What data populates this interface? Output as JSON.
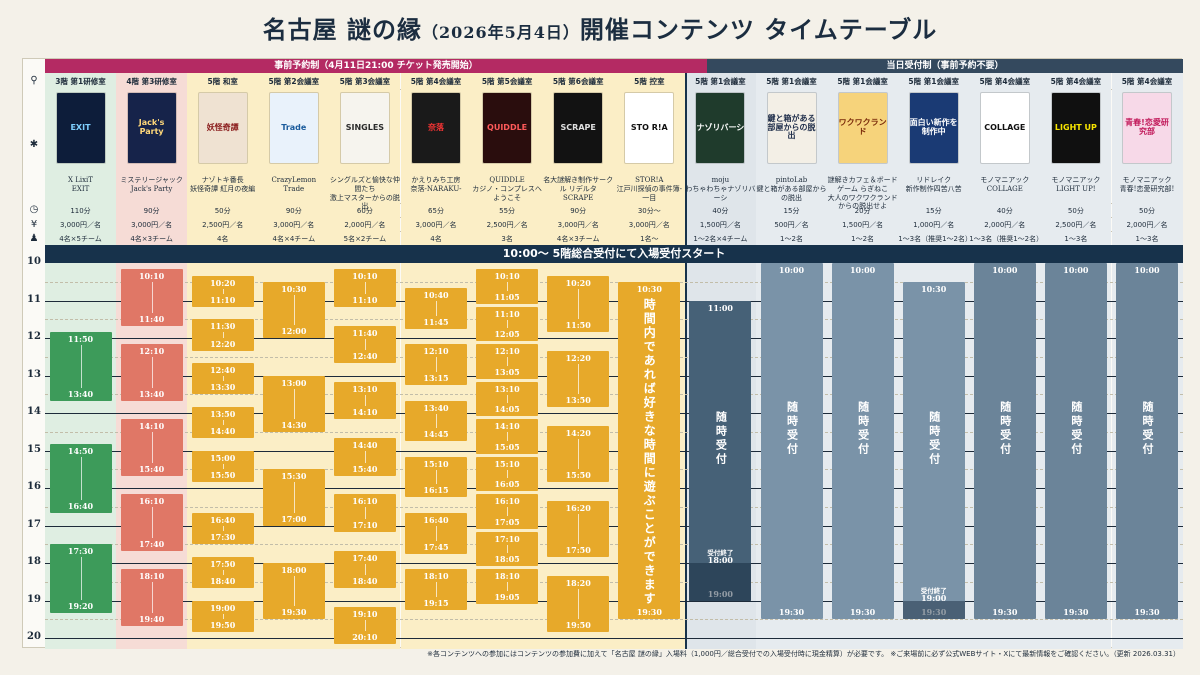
{
  "title": {
    "main": "名古屋 謎の縁",
    "date": "（2026年5月4日）",
    "suffix": "開催コンテンツ タイムテーブル"
  },
  "sections": {
    "pre": "事前予約制（4月11日21:00 チケット発売開始）",
    "day": "当日受付制（事前予約不要）"
  },
  "banner": "10:00～ 5階総合受付にて入場受付スタート",
  "icons": [
    "location-pin-icon",
    "puzzle-icon",
    "clock-icon",
    "yen-icon",
    "people-icon"
  ],
  "hours": [
    "10",
    "11",
    "12",
    "13",
    "14",
    "15",
    "16",
    "17",
    "18",
    "19",
    "20"
  ],
  "columns": [
    {
      "room": "3階 第1研修室",
      "poster": "EXIT",
      "title1": "X LixiT",
      "title2": "EXIT",
      "time": "110分",
      "price": "3,000円／名",
      "people": "4名×5チーム",
      "color": "#3d9b5a",
      "bg": "#dfeee2",
      "slots": [
        [
          "11:50",
          "13:40"
        ],
        [
          "14:50",
          "16:40"
        ],
        [
          "17:30",
          "19:20"
        ]
      ]
    },
    {
      "room": "4階 第3研修室",
      "poster": "Jack's Party",
      "title1": "ミステリージャック",
      "title2": "Jack's Party",
      "time": "90分",
      "price": "3,000円／名",
      "people": "4名×3チーム",
      "color": "#e07766",
      "bg": "#f6dcd6",
      "slots": [
        [
          "10:10",
          "11:40"
        ],
        [
          "12:10",
          "13:40"
        ],
        [
          "14:10",
          "15:40"
        ],
        [
          "16:10",
          "17:40"
        ],
        [
          "18:10",
          "19:40"
        ]
      ]
    },
    {
      "room": "5階 和室",
      "poster": "妖怪奇譚",
      "title1": "ナゾトキ番長",
      "title2": "妖怪奇譚 紅月の夜編",
      "time": "50分",
      "price": "2,500円／名",
      "people": "4名",
      "color": "#e7a92a",
      "bg": "#fbeec6",
      "slots": [
        [
          "10:20",
          "11:10"
        ],
        [
          "11:30",
          "12:20"
        ],
        [
          "12:40",
          "13:30"
        ],
        [
          "13:50",
          "14:40"
        ],
        [
          "15:00",
          "15:50"
        ],
        [
          "16:40",
          "17:30"
        ],
        [
          "17:50",
          "18:40"
        ],
        [
          "19:00",
          "19:50"
        ]
      ]
    },
    {
      "room": "5階 第2会議室",
      "poster": "Trade",
      "title1": "CrazyLemon",
      "title2": "Trade",
      "time": "90分",
      "price": "3,000円／名",
      "people": "4名×4チーム",
      "color": "#e7a92a",
      "bg": "#fbeec6",
      "slots": [
        [
          "10:30",
          "12:00"
        ],
        [
          "13:00",
          "14:30"
        ],
        [
          "15:30",
          "17:00"
        ],
        [
          "18:00",
          "19:30"
        ]
      ]
    },
    {
      "room": "5階 第3会議室",
      "poster": "SINGLES",
      "title1": "シングルズと愉快な仲間たち",
      "title2": "激上マスターからの脱出",
      "time": "60分",
      "price": "2,000円／名",
      "people": "5名×2チーム",
      "color": "#e7a92a",
      "bg": "#fbeec6",
      "slots": [
        [
          "10:10",
          "11:10"
        ],
        [
          "11:40",
          "12:40"
        ],
        [
          "13:10",
          "14:10"
        ],
        [
          "14:40",
          "15:40"
        ],
        [
          "16:10",
          "17:10"
        ],
        [
          "17:40",
          "18:40"
        ],
        [
          "19:10",
          "20:10"
        ]
      ]
    },
    {
      "room": "5階 第4会議室",
      "poster": "奈落",
      "title1": "かえりみち工房",
      "title2": "奈落-NARAKU-",
      "time": "65分",
      "price": "3,000円／名",
      "people": "4名",
      "color": "#e7a92a",
      "bg": "#fbeec6",
      "slots": [
        [
          "10:40",
          "11:45"
        ],
        [
          "12:10",
          "13:15"
        ],
        [
          "13:40",
          "14:45"
        ],
        [
          "15:10",
          "16:15"
        ],
        [
          "16:40",
          "17:45"
        ],
        [
          "18:10",
          "19:15"
        ]
      ]
    },
    {
      "room": "5階 第5会議室",
      "poster": "QUIDDLE",
      "title1": "QUIDDLE",
      "title2": "カジノ・コンプレスへようこそ",
      "time": "55分",
      "price": "2,500円／名",
      "people": "3名",
      "color": "#e7a92a",
      "bg": "#fbeec6",
      "slots": [
        [
          "10:10",
          "11:05"
        ],
        [
          "11:10",
          "12:05"
        ],
        [
          "12:10",
          "13:05"
        ],
        [
          "13:10",
          "14:05"
        ],
        [
          "14:10",
          "15:05"
        ],
        [
          "15:10",
          "16:05"
        ],
        [
          "16:10",
          "17:05"
        ],
        [
          "17:10",
          "18:05"
        ],
        [
          "18:10",
          "19:05"
        ]
      ]
    },
    {
      "room": "5階 第6会議室",
      "poster": "SCRAPE",
      "title1": "名大謎解き制作サークル リデルタ",
      "title2": "SCRAPE",
      "time": "90分",
      "price": "3,000円／名",
      "people": "4名×3チーム",
      "color": "#e7a92a",
      "bg": "#fbeec6",
      "slots": [
        [
          "10:20",
          "11:50"
        ],
        [
          "12:20",
          "13:50"
        ],
        [
          "14:20",
          "15:50"
        ],
        [
          "16:20",
          "17:50"
        ],
        [
          "18:20",
          "19:50"
        ]
      ]
    },
    {
      "room": "5階 控室",
      "poster": "STO R!A",
      "title1": "STOR!A",
      "title2": "江戸川探偵の事件簿-一目",
      "time": "30分～",
      "price": "3,000円／名",
      "people": "1名～",
      "color": "#e7a92a",
      "bg": "#fbeec6",
      "free": {
        "start": "10:30",
        "end": "19:30",
        "text": "時間内であれば好きな時間に遊ぶことができます"
      }
    },
    {
      "room": "5階 第1会議室",
      "poster": "ナゾリバーシ",
      "title1": "moju",
      "title2": "わちゃわちゃナゾリバーシ",
      "time": "40分",
      "price": "1,500円／名",
      "people": "1～2名×4チーム",
      "color": "#466177",
      "bg": "#dfe5ea",
      "walk": {
        "start": "11:00",
        "end": "19:00",
        "text": "随時受付",
        "last_label": "受付終了",
        "last": "18:00"
      }
    },
    {
      "room": "5階 第1会議室",
      "poster": "鍵と箱がある部屋からの脱出",
      "title1": "pintoLab",
      "title2": "鍵と箱がある部屋からの脱出",
      "time": "15分",
      "price": "500円／名",
      "people": "1～2名",
      "color": "#7a93a8",
      "bg": "#e6ebef",
      "walk": {
        "start": "10:00",
        "end": "19:30",
        "text": "随時受付"
      }
    },
    {
      "room": "5階 第1会議室",
      "poster": "ワクワクランド",
      "title1": "謎解きカフェ＆ボードゲーム らぎねこ",
      "title2": "大人のワクワクランドからの脱出せよ",
      "time": "20分",
      "price": "1,500円／名",
      "people": "1～2名",
      "color": "#7a93a8",
      "bg": "#e6ebef",
      "walk": {
        "start": "10:00",
        "end": "19:30",
        "text": "随時受付"
      }
    },
    {
      "room": "5階 第1会議室",
      "poster": "面白い新作を制作中",
      "title1": "リドレイク",
      "title2": "新作制作四苦八苦",
      "time": "15分",
      "price": "1,000円／名",
      "people": "1～3名（推奨1～2名）",
      "color": "#7a93a8",
      "bg": "#e6ebef",
      "walk": {
        "start": "10:30",
        "end": "19:30",
        "text": "随時受付",
        "last_label": "受付終了",
        "last": "19:00"
      }
    },
    {
      "room": "5階 第4会議室",
      "poster": "COLLAGE",
      "title1": "モノマニアック",
      "title2": "COLLAGE",
      "time": "40分",
      "price": "2,000円／名",
      "people": "1～3名（推奨1～2名）",
      "color": "#6b8499",
      "bg": "#e6ebef",
      "walk": {
        "start": "10:00",
        "end": "19:30",
        "text": "随時受付"
      }
    },
    {
      "room": "5階 第4会議室",
      "poster": "LIGHT UP",
      "title1": "モノマニアック",
      "title2": "LIGHT UP!",
      "time": "50分",
      "price": "2,500円／名",
      "people": "1～3名",
      "color": "#6b8499",
      "bg": "#e6ebef",
      "walk": {
        "start": "10:00",
        "end": "19:30",
        "text": "随時受付"
      }
    },
    {
      "room": "5階 第4会議室",
      "poster": "青春!恋愛研究部",
      "title1": "モノマニアック",
      "title2": "青春!恋愛研究部!",
      "time": "50分",
      "price": "2,000円／名",
      "people": "1～3名",
      "color": "#6b8499",
      "bg": "#e6ebef",
      "walk": {
        "start": "10:00",
        "end": "19:30",
        "text": "随時受付"
      }
    }
  ],
  "footnote": "※各コンテンツへの参加にはコンテンツの参加費に加えて「名古屋 謎の縁」入場料（1,000円／総合受付での入場受付時に現金精算）が必要です。 ※ご来場前に必ず公式WEBサイト・Xにて最新情報をご確認ください。（更新 2026.03.31）"
}
